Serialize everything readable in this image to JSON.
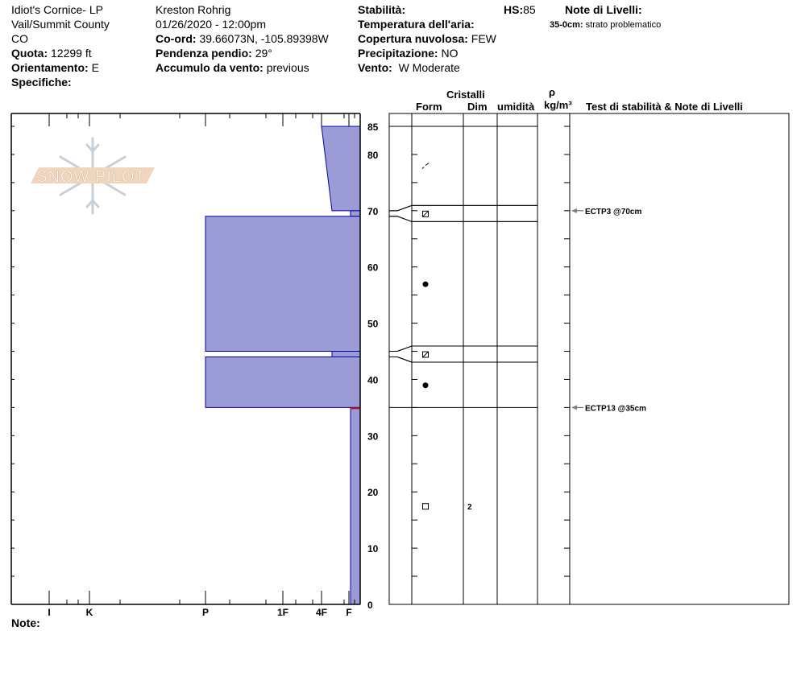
{
  "header": {
    "col1": {
      "location": "Idiot's Cornice- LP",
      "region": "Vail/Summit County",
      "state": "CO",
      "elevation_label": "Quota:",
      "elevation": "12299 ft",
      "aspect_label": "Orientamento:",
      "aspect": "E",
      "specifics_label": "Specifiche:"
    },
    "col2": {
      "observer": "Kreston Rohrig",
      "datetime": "01/26/2020 - 12:00pm",
      "coord_label": "Co-ord:",
      "coord": "39.66073N, -105.89398W",
      "slope_label": "Pendenza pendio:",
      "slope": "29°",
      "wind_loading_label": "Accumulo da vento:",
      "wind_loading": "previous"
    },
    "col3": {
      "stability_label": "Stabilità:",
      "air_temp_label": "Temperatura dell'aria:",
      "sky_label": "Copertura nuvolosa:",
      "sky": "FEW",
      "precip_label": "Precipitazione:",
      "precip": "NO",
      "wind_label": "Vento:",
      "wind": "W Moderate",
      "hs_label": "HS:",
      "hs": "85"
    },
    "layer_notes": {
      "title": "Note di Livelli:",
      "items": [
        {
          "range": "35-0cm:",
          "text": "strato problematico"
        }
      ]
    }
  },
  "table_headers": {
    "crystals": "Cristalli",
    "form": "Form",
    "size": "Dim",
    "moisture": "umidità",
    "density_symbol": "ρ",
    "density_unit": "kg/m³",
    "tests": "Test di stabilità & Note di Livelli"
  },
  "footer": {
    "notes_label": "Note:"
  },
  "logo": {
    "text": "SNOW PILOT"
  },
  "colors": {
    "layer_fill": "#9b9bd6",
    "layer_stroke": "#0000b0",
    "problem_marker": "#d01010",
    "arrow": "#808080"
  },
  "chart_data": {
    "type": "snow-profile",
    "y_axis": {
      "unit": "cm",
      "range": [
        0,
        85
      ],
      "tick_labels": [
        "0",
        "10",
        "20",
        "30",
        "40",
        "50",
        "60",
        "70",
        "80",
        "85"
      ]
    },
    "x_axis": {
      "type": "hand-hardness",
      "tick_labels": [
        "I",
        "K",
        "P",
        "1F",
        "4F",
        "F"
      ]
    },
    "layers": [
      {
        "top": 85,
        "bottom": 70,
        "hardness_top": "4F",
        "hardness_bottom": "4F-",
        "form": "DF",
        "size": ""
      },
      {
        "top": 70,
        "bottom": 69,
        "hardness_top": "F",
        "hardness_bottom": "F",
        "form": "FC",
        "size": ""
      },
      {
        "top": 69,
        "bottom": 45,
        "hardness_top": "P",
        "hardness_bottom": "P",
        "form": "RG",
        "size": ""
      },
      {
        "top": 45,
        "bottom": 44,
        "hardness_top": "4F-",
        "hardness_bottom": "4F-",
        "form": "FC",
        "size": ""
      },
      {
        "top": 44,
        "bottom": 35,
        "hardness_top": "P",
        "hardness_bottom": "P",
        "form": "RG",
        "size": ""
      },
      {
        "top": 35,
        "bottom": 0,
        "hardness_top": "F",
        "hardness_bottom": "F",
        "form": "FCso",
        "size": "2"
      }
    ],
    "problem_layer_top": 35,
    "tests": [
      {
        "depth": 70,
        "label": "ECTP3 @70cm"
      },
      {
        "depth": 35,
        "label": "ECTP13 @35cm"
      }
    ]
  }
}
